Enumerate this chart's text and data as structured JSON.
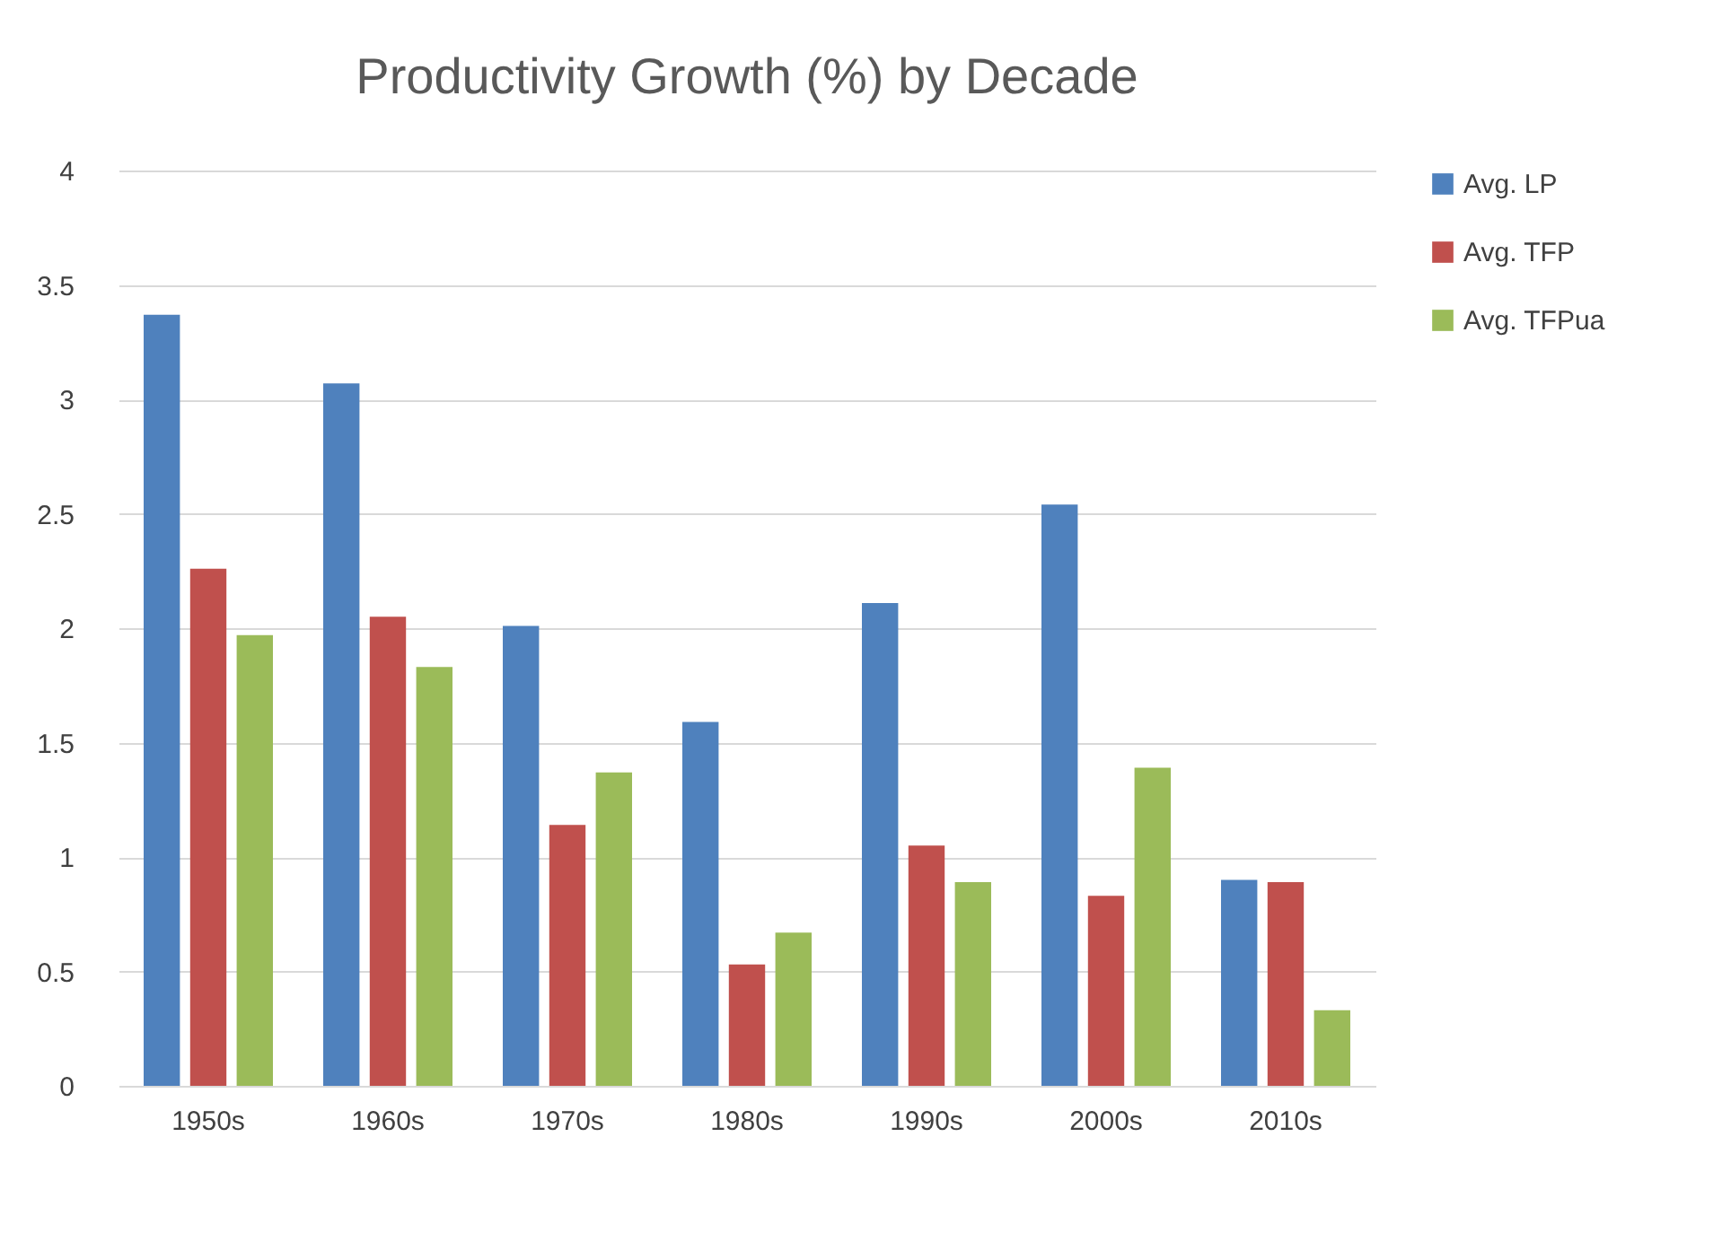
{
  "chart_data": {
    "type": "bar",
    "title": "Productivity Growth (%) by Decade",
    "categories": [
      "1950s",
      "1960s",
      "1970s",
      "1980s",
      "1990s",
      "2000s",
      "2010s"
    ],
    "series": [
      {
        "name": "Avg. LP",
        "color": "#4f81bd",
        "values": [
          3.37,
          3.07,
          2.01,
          1.59,
          2.11,
          2.54,
          0.9
        ]
      },
      {
        "name": "Avg. TFP",
        "color": "#c0504d",
        "values": [
          2.26,
          2.05,
          1.14,
          0.53,
          1.05,
          0.83,
          0.89
        ]
      },
      {
        "name": "Avg. TFPua",
        "color": "#9bbb59",
        "values": [
          1.97,
          1.83,
          1.37,
          0.67,
          0.89,
          1.39,
          0.33
        ]
      }
    ],
    "ylim": [
      0,
      4
    ],
    "yticks": [
      0,
      0.5,
      1,
      1.5,
      2,
      2.5,
      3,
      3.5,
      4
    ],
    "grid": "y",
    "legend": "right"
  }
}
